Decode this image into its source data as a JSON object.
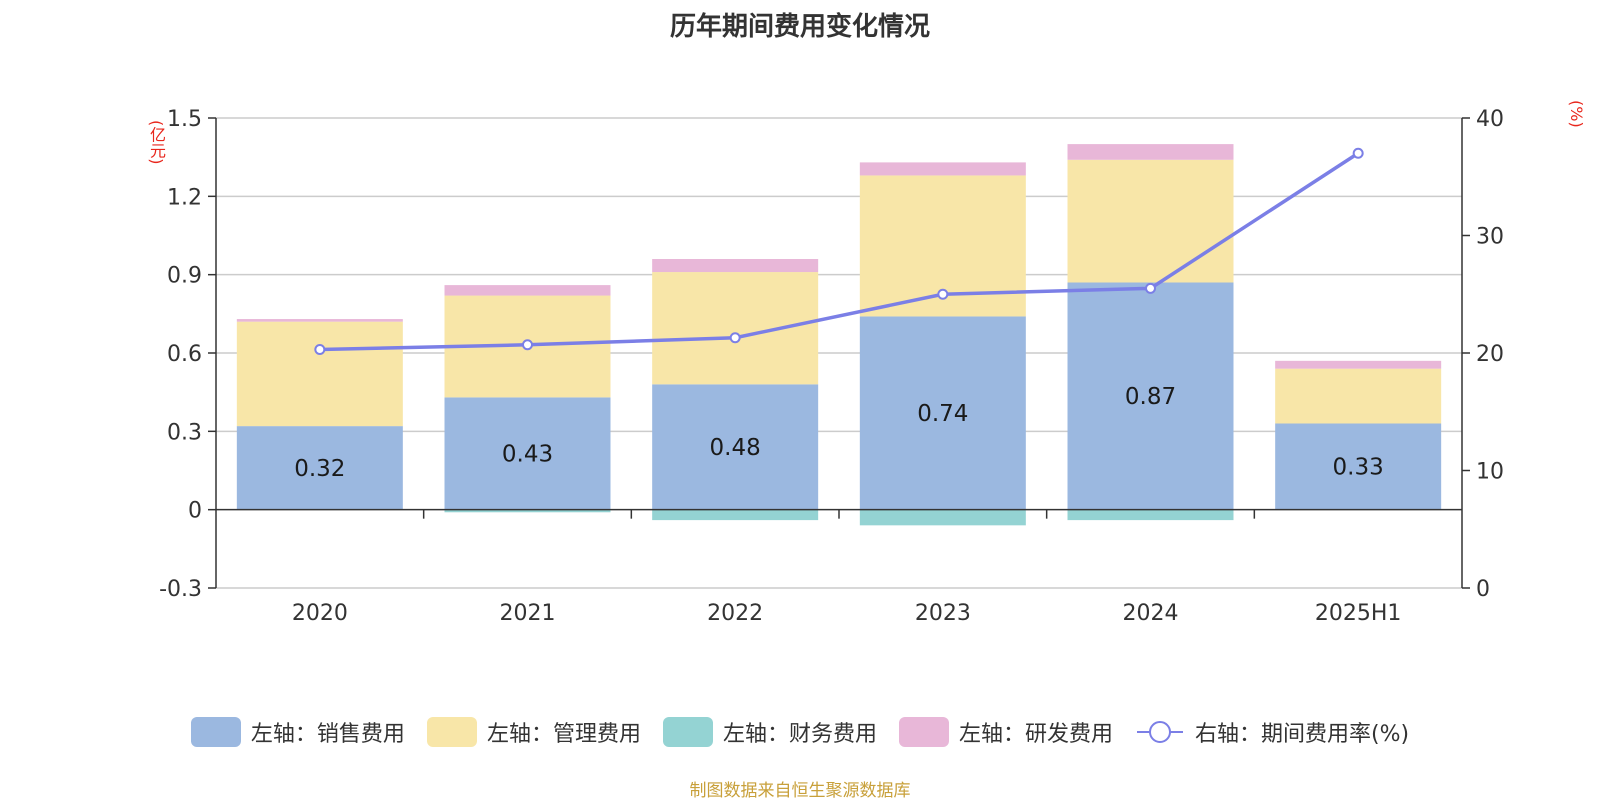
{
  "chart_data": {
    "type": "bar",
    "title": "历年期间费用变化情况",
    "y_unit_left": "(亿元)",
    "y_unit_right": "(%)",
    "categories": [
      "2020",
      "2021",
      "2022",
      "2023",
      "2024",
      "2025H1"
    ],
    "series": [
      {
        "name": "左轴：销售费用",
        "axis": "left",
        "color": "#9bb8e0",
        "values": [
          0.32,
          0.43,
          0.48,
          0.74,
          0.87,
          0.33
        ],
        "labels": [
          "0.32",
          "0.43",
          "0.48",
          "0.74",
          "0.87",
          "0.33"
        ]
      },
      {
        "name": "左轴：管理费用",
        "axis": "left",
        "color": "#f8e6a8",
        "values": [
          0.4,
          0.39,
          0.43,
          0.54,
          0.47,
          0.21
        ]
      },
      {
        "name": "左轴：财务费用",
        "axis": "left",
        "color": "#94d3d3",
        "values": [
          0.0,
          -0.01,
          -0.04,
          -0.06,
          -0.04,
          0.0
        ]
      },
      {
        "name": "左轴：研发费用",
        "axis": "left",
        "color": "#e8b7d8",
        "values": [
          0.01,
          0.04,
          0.05,
          0.05,
          0.06,
          0.03
        ]
      },
      {
        "name": "右轴：期间费用率(%)",
        "axis": "right",
        "type": "line",
        "color": "#7b7fe6",
        "values": [
          20.3,
          20.7,
          21.3,
          25.0,
          25.5,
          37.0
        ]
      }
    ],
    "y_left": {
      "min": -0.3,
      "max": 1.5,
      "ticks": [
        "-0.3",
        "0",
        "0.3",
        "0.6",
        "0.9",
        "1.2",
        "1.5"
      ],
      "tick_values": [
        -0.3,
        0,
        0.3,
        0.6,
        0.9,
        1.2,
        1.5
      ]
    },
    "y_right": {
      "min": 0,
      "max": 40,
      "ticks": [
        "0",
        "10",
        "20",
        "30",
        "40"
      ],
      "tick_values": [
        0,
        10,
        20,
        30,
        40
      ]
    },
    "grid": true,
    "legend_position": "bottom",
    "source": "制图数据来自恒生聚源数据库"
  }
}
